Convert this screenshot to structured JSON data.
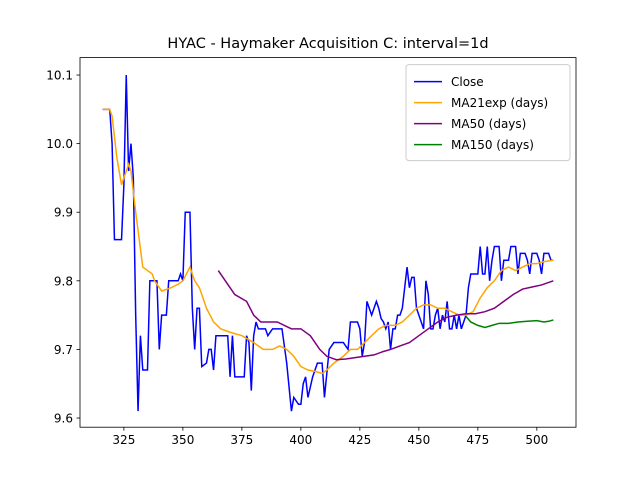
{
  "chart_data": {
    "type": "line",
    "title": "HYAC - Haymaker Acquisition C: interval=1d",
    "xlim": [
      306.4,
      516.6
    ],
    "ylim": [
      9.5866,
      10.1254
    ],
    "xticks": [
      325,
      350,
      375,
      400,
      425,
      450,
      475,
      500
    ],
    "yticks": [
      9.6,
      9.7,
      9.8,
      9.9,
      {
        "value": 10,
        "label": "10.0"
      },
      10.1
    ],
    "grid": false,
    "legend": "upper right",
    "series": [
      {
        "name": "Close",
        "color": "#0000ff",
        "x": [
          316,
          319,
          320,
          321,
          324,
          325,
          326,
          327,
          328,
          329,
          330,
          331,
          332,
          333,
          335,
          336,
          339,
          340,
          341,
          343,
          344,
          348,
          349,
          350,
          351,
          353,
          354,
          355,
          356,
          357,
          358,
          360,
          361,
          362,
          363,
          364,
          369,
          370,
          371,
          372,
          376,
          377,
          378,
          379,
          380,
          381,
          382,
          385,
          386,
          388,
          391,
          392,
          394,
          396,
          397,
          399,
          400,
          401,
          402,
          403,
          405,
          407,
          409,
          410,
          412,
          414,
          418,
          420,
          421,
          424,
          425,
          426,
          427,
          428,
          429,
          430,
          431,
          432,
          433,
          434,
          435,
          436,
          437,
          438,
          439,
          440,
          441,
          442,
          443,
          444,
          445,
          446,
          447,
          448,
          449,
          450,
          451,
          452,
          453,
          454,
          455,
          456,
          457,
          458,
          459,
          460,
          461,
          462,
          463,
          464,
          465,
          466,
          467,
          468,
          469,
          470,
          471,
          472,
          475,
          476,
          477,
          478,
          479,
          480,
          481,
          482,
          484,
          485,
          486,
          488,
          489,
          491,
          492,
          493,
          495,
          496,
          497,
          498,
          500,
          501,
          502,
          503,
          505,
          506,
          507
        ],
        "values": [
          10.05,
          10.05,
          10.0,
          9.86,
          9.86,
          9.94,
          10.1,
          9.96,
          10.0,
          9.95,
          9.75,
          9.61,
          9.72,
          9.67,
          9.67,
          9.8,
          9.8,
          9.7,
          9.75,
          9.75,
          9.8,
          9.8,
          9.81,
          9.8,
          9.9,
          9.9,
          9.76,
          9.7,
          9.76,
          9.76,
          9.675,
          9.68,
          9.7,
          9.7,
          9.67,
          9.72,
          9.72,
          9.66,
          9.72,
          9.66,
          9.66,
          9.72,
          9.71,
          9.64,
          9.72,
          9.74,
          9.73,
          9.73,
          9.72,
          9.73,
          9.73,
          9.73,
          9.68,
          9.61,
          9.63,
          9.62,
          9.62,
          9.65,
          9.66,
          9.63,
          9.66,
          9.68,
          9.68,
          9.63,
          9.7,
          9.71,
          9.71,
          9.7,
          9.74,
          9.74,
          9.73,
          9.69,
          9.71,
          9.77,
          9.76,
          9.75,
          9.76,
          9.77,
          9.76,
          9.745,
          9.74,
          9.73,
          9.74,
          9.7,
          9.73,
          9.73,
          9.75,
          9.75,
          9.76,
          9.79,
          9.82,
          9.79,
          9.805,
          9.805,
          9.76,
          9.75,
          9.74,
          9.73,
          9.8,
          9.78,
          9.73,
          9.73,
          9.75,
          9.76,
          9.73,
          9.75,
          9.74,
          9.77,
          9.73,
          9.73,
          9.75,
          9.73,
          9.75,
          9.73,
          9.74,
          9.75,
          9.79,
          9.81,
          9.81,
          9.85,
          9.81,
          9.81,
          9.85,
          9.8,
          9.83,
          9.85,
          9.85,
          9.8,
          9.83,
          9.83,
          9.85,
          9.85,
          9.81,
          9.84,
          9.84,
          9.83,
          9.81,
          9.84,
          9.84,
          9.83,
          9.81,
          9.84,
          9.84,
          9.83,
          9.83
        ]
      },
      {
        "name": "MA21exp (days)",
        "color": "#ffa500",
        "x": [
          316,
          319,
          320,
          322,
          324,
          325,
          327,
          328,
          330,
          333,
          337,
          338,
          341,
          345,
          348,
          350,
          353,
          355,
          357,
          360,
          363,
          366,
          370,
          375,
          380,
          384,
          388,
          391,
          394,
          397,
          400,
          403,
          406,
          409,
          411,
          414,
          418,
          421,
          424,
          427,
          430,
          433,
          436,
          440,
          443,
          446,
          449,
          452,
          455,
          458,
          461,
          464,
          467,
          470,
          473,
          476,
          479,
          482,
          485,
          488,
          491,
          494,
          497,
          500,
          503,
          507
        ],
        "values": [
          10.05,
          10.05,
          10.04,
          9.98,
          9.94,
          9.95,
          9.97,
          9.96,
          9.9,
          9.82,
          9.81,
          9.8,
          9.785,
          9.79,
          9.795,
          9.8,
          9.82,
          9.8,
          9.79,
          9.76,
          9.74,
          9.73,
          9.725,
          9.72,
          9.71,
          9.7,
          9.7,
          9.705,
          9.7,
          9.69,
          9.675,
          9.67,
          9.668,
          9.665,
          9.67,
          9.68,
          9.69,
          9.7,
          9.7,
          9.71,
          9.72,
          9.73,
          9.735,
          9.735,
          9.74,
          9.75,
          9.76,
          9.765,
          9.765,
          9.76,
          9.76,
          9.755,
          9.75,
          9.75,
          9.755,
          9.775,
          9.79,
          9.8,
          9.815,
          9.82,
          9.815,
          9.82,
          9.825,
          9.825,
          9.828,
          9.83
        ]
      },
      {
        "name": "MA50 (days)",
        "color": "#800080",
        "x": [
          365,
          368,
          372,
          377,
          380,
          383,
          387,
          390,
          393,
          396,
          400,
          404,
          408,
          411,
          415,
          419,
          423,
          427,
          431,
          435,
          438,
          442,
          446,
          450,
          454,
          458,
          462,
          466,
          470,
          474,
          478,
          482,
          486,
          490,
          494,
          498,
          502,
          507
        ],
        "values": [
          9.815,
          9.8,
          9.78,
          9.77,
          9.75,
          9.74,
          9.74,
          9.74,
          9.735,
          9.73,
          9.73,
          9.72,
          9.7,
          9.69,
          9.685,
          9.686,
          9.688,
          9.69,
          9.692,
          9.697,
          9.7,
          9.705,
          9.71,
          9.72,
          9.73,
          9.74,
          9.747,
          9.75,
          9.752,
          9.752,
          9.755,
          9.76,
          9.77,
          9.78,
          9.788,
          9.791,
          9.794,
          9.8
        ]
      },
      {
        "name": "MA150 (days)",
        "color": "#008000",
        "x": [
          470,
          472,
          475,
          478,
          481,
          484,
          488,
          492,
          496,
          500,
          503,
          505,
          507
        ],
        "values": [
          9.748,
          9.74,
          9.735,
          9.732,
          9.735,
          9.738,
          9.738,
          9.74,
          9.741,
          9.742,
          9.74,
          9.741,
          9.743
        ]
      }
    ]
  }
}
